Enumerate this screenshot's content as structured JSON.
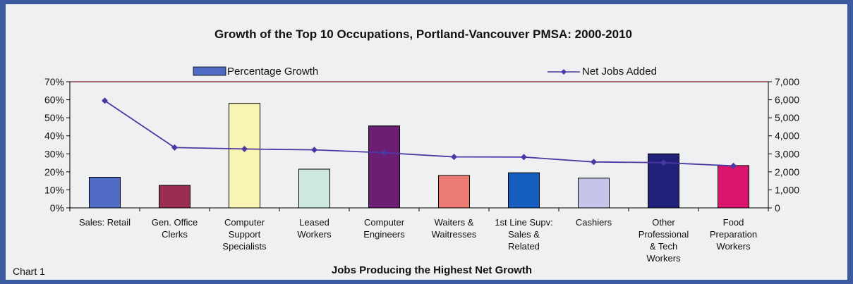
{
  "chart_data": {
    "type": "bar",
    "title": "Growth of the Top 10 Occupations, Portland-Vancouver PMSA: 2000-2010",
    "xlabel": "Jobs Producing the Highest Net Growth",
    "caption": "Chart 1",
    "categories": [
      [
        "Sales: Retail"
      ],
      [
        "Gen. Office",
        "Clerks"
      ],
      [
        "Computer",
        "Support",
        "Specialists"
      ],
      [
        "Leased",
        "Workers"
      ],
      [
        "Computer",
        "Engineers"
      ],
      [
        "Waiters &",
        "Waitresses"
      ],
      [
        "1st Line Supv:",
        "Sales &",
        "Related"
      ],
      [
        "Cashiers"
      ],
      [
        "Other",
        "Professional",
        "& Tech",
        "Workers"
      ],
      [
        "Food",
        "Preparation",
        "Workers"
      ]
    ],
    "series": [
      {
        "name": "Percentage Growth",
        "axis": "left",
        "values": [
          17,
          12.5,
          58,
          21.5,
          45.5,
          18,
          19.5,
          16.5,
          30,
          23.5
        ]
      },
      {
        "name": "Net Jobs Added",
        "axis": "right",
        "values": [
          5950,
          3350,
          3270,
          3220,
          3060,
          2830,
          2820,
          2550,
          2510,
          2330
        ]
      }
    ],
    "bar_colors": [
      "#4f6bc3",
      "#9b2c54",
      "#f8f4b4",
      "#cde8dd",
      "#6b1e74",
      "#ea7a72",
      "#155ebf",
      "#c5c4ea",
      "#20207a",
      "#d9156e"
    ],
    "line_color": "#4b38a3",
    "left_axis": {
      "min": 0,
      "max": 70,
      "step": 10,
      "ticks": [
        "0%",
        "10%",
        "20%",
        "30%",
        "40%",
        "50%",
        "60%",
        "70%"
      ]
    },
    "right_axis": {
      "min": 0,
      "max": 7000,
      "step": 1000,
      "ticks": [
        "0",
        "1,000",
        "2,000",
        "3,000",
        "4,000",
        "5,000",
        "6,000",
        "7,000"
      ]
    },
    "grid": false,
    "legend_placement": "top"
  }
}
